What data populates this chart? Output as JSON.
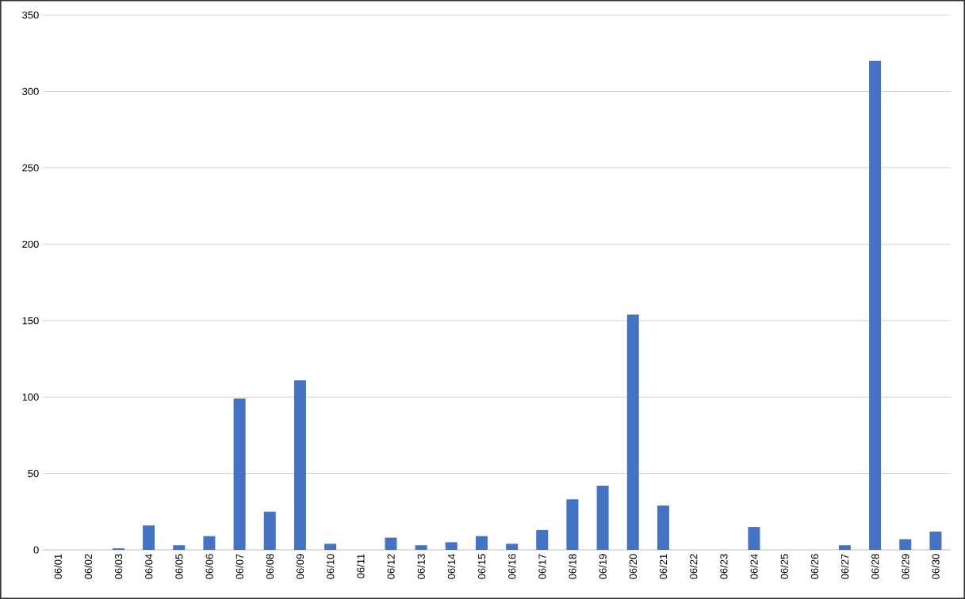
{
  "chart_data": {
    "type": "bar",
    "categories": [
      "06/01",
      "06/02",
      "06/03",
      "06/04",
      "06/05",
      "06/06",
      "06/07",
      "06/08",
      "06/09",
      "06/10",
      "06/11",
      "06/12",
      "06/13",
      "06/14",
      "06/15",
      "06/16",
      "06/17",
      "06/18",
      "06/19",
      "06/20",
      "06/21",
      "06/22",
      "06/23",
      "06/24",
      "06/25",
      "06/26",
      "06/27",
      "06/28",
      "06/29",
      "06/30"
    ],
    "values": [
      0,
      0,
      1,
      16,
      3,
      9,
      99,
      25,
      111,
      4,
      0,
      8,
      3,
      5,
      9,
      4,
      13,
      33,
      42,
      154,
      29,
      0,
      0,
      15,
      0,
      0,
      3,
      320,
      7,
      12
    ],
    "color": "#4472c4",
    "ylim": [
      0,
      350
    ],
    "yticks": [
      0,
      50,
      100,
      150,
      200,
      250,
      300,
      350
    ],
    "grid": "y"
  }
}
